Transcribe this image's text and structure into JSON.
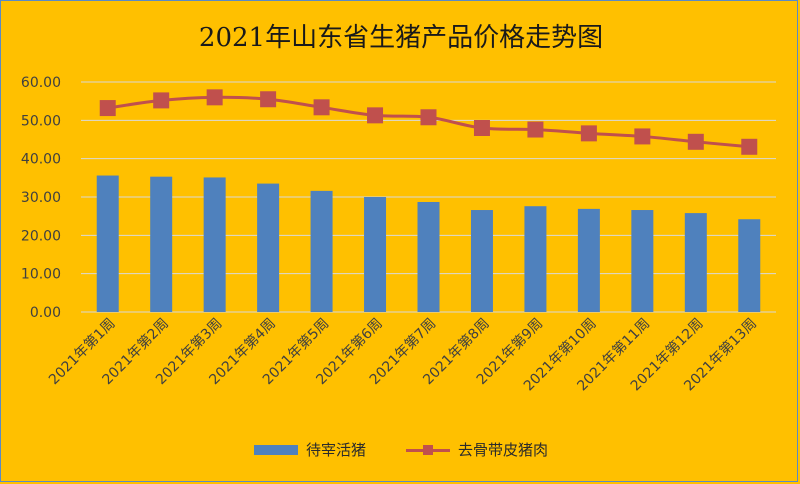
{
  "chart_data": {
    "type": "bar",
    "title": "2021年山东省生猪产品价格走势图",
    "categories": [
      "2021年第1周",
      "2021年第2周",
      "2021年第3周",
      "2021年第4周",
      "2021年第5周",
      "2021年第6周",
      "2021年第7周",
      "2021年第8周",
      "2021年第9周",
      "2021年第10周",
      "2021年第11周",
      "2021年第12周",
      "2021年第13周"
    ],
    "series": [
      {
        "name": "待宰活猪",
        "type": "bar",
        "color": "#4f81bd",
        "values": [
          35.6,
          35.3,
          35.1,
          33.5,
          31.6,
          30.0,
          28.7,
          26.6,
          27.6,
          26.9,
          26.6,
          25.8,
          24.2
        ]
      },
      {
        "name": "去骨带皮猪肉",
        "type": "line",
        "color": "#c0504d",
        "values": [
          53.2,
          55.2,
          56.0,
          55.5,
          53.4,
          51.3,
          50.8,
          48.0,
          47.6,
          46.6,
          45.8,
          44.4,
          43.1
        ]
      }
    ],
    "yticks": [
      "0.00",
      "10.00",
      "20.00",
      "30.00",
      "40.00",
      "50.00",
      "60.00"
    ],
    "ylim": [
      0,
      60
    ],
    "grid": true,
    "legend": "bottom"
  }
}
